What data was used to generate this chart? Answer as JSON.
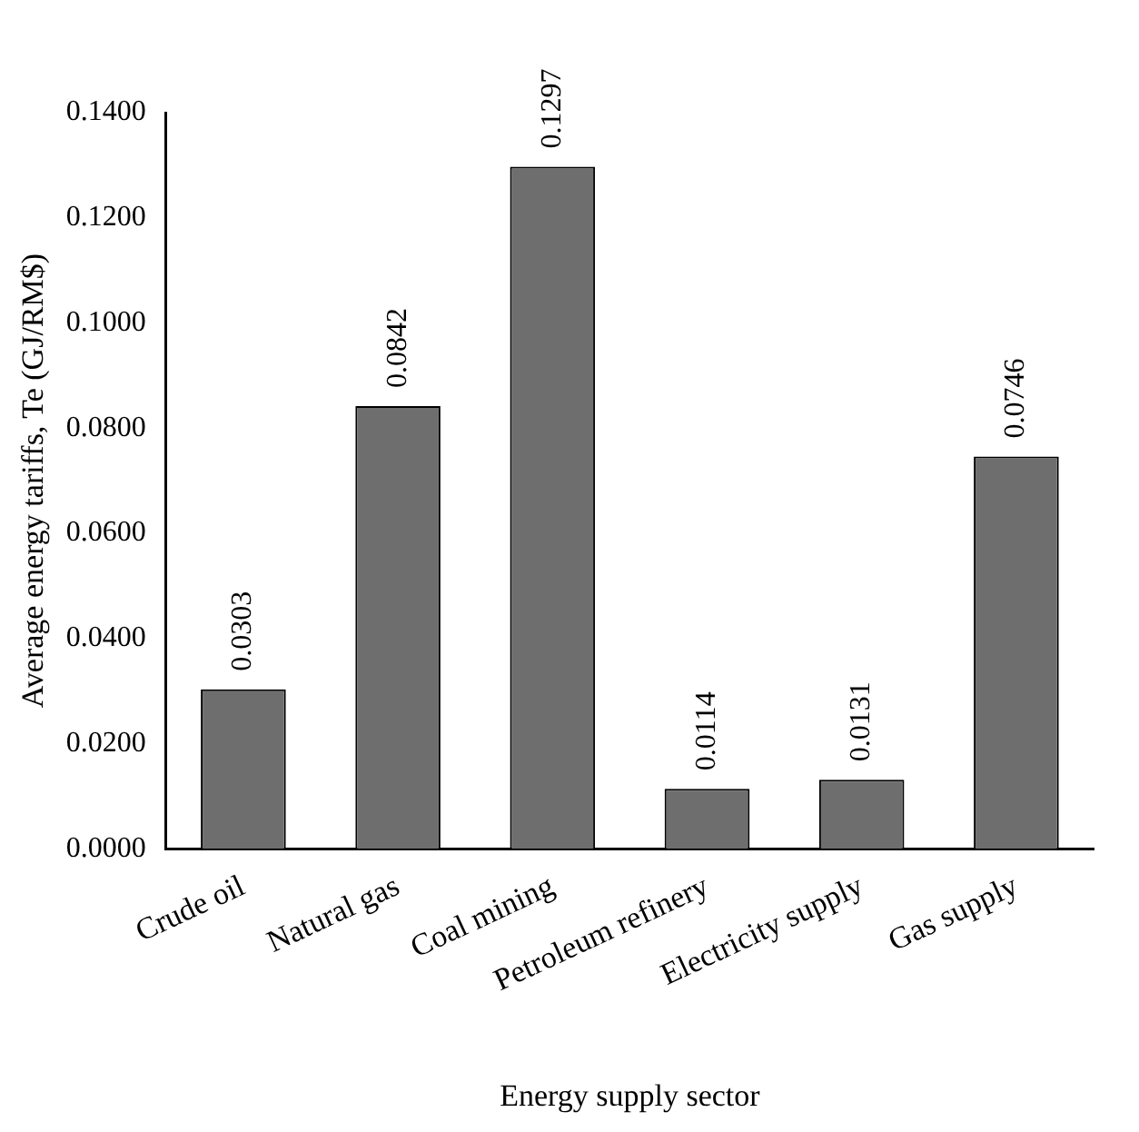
{
  "chart_data": {
    "type": "bar",
    "xlabel": "Energy supply sector",
    "ylabel": "Average energy tariffs, Te (GJ/RM$)",
    "categories": [
      "Crude oil",
      "Natural gas",
      "Coal mining",
      "Petroleum refinery",
      "Electricity supply",
      "Gas supply"
    ],
    "values": [
      0.0303,
      0.0842,
      0.1297,
      0.0114,
      0.0131,
      0.0746
    ],
    "color": "#6e6e6e",
    "ylim": [
      0,
      0.14
    ],
    "yticks": [
      {
        "value": 0,
        "label": "0.0000"
      },
      {
        "value": 0.02,
        "label": "0.0200"
      },
      {
        "value": 0.04,
        "label": "0.0400"
      },
      {
        "value": 0.06,
        "label": "0.0600"
      },
      {
        "value": 0.08,
        "label": "0.0800"
      },
      {
        "value": 0.1,
        "label": "0.1000"
      },
      {
        "value": 0.12,
        "label": "0.1200"
      },
      {
        "value": 0.14,
        "label": "0.1400"
      }
    ],
    "data_labels": true,
    "grid": false,
    "legend": false
  }
}
